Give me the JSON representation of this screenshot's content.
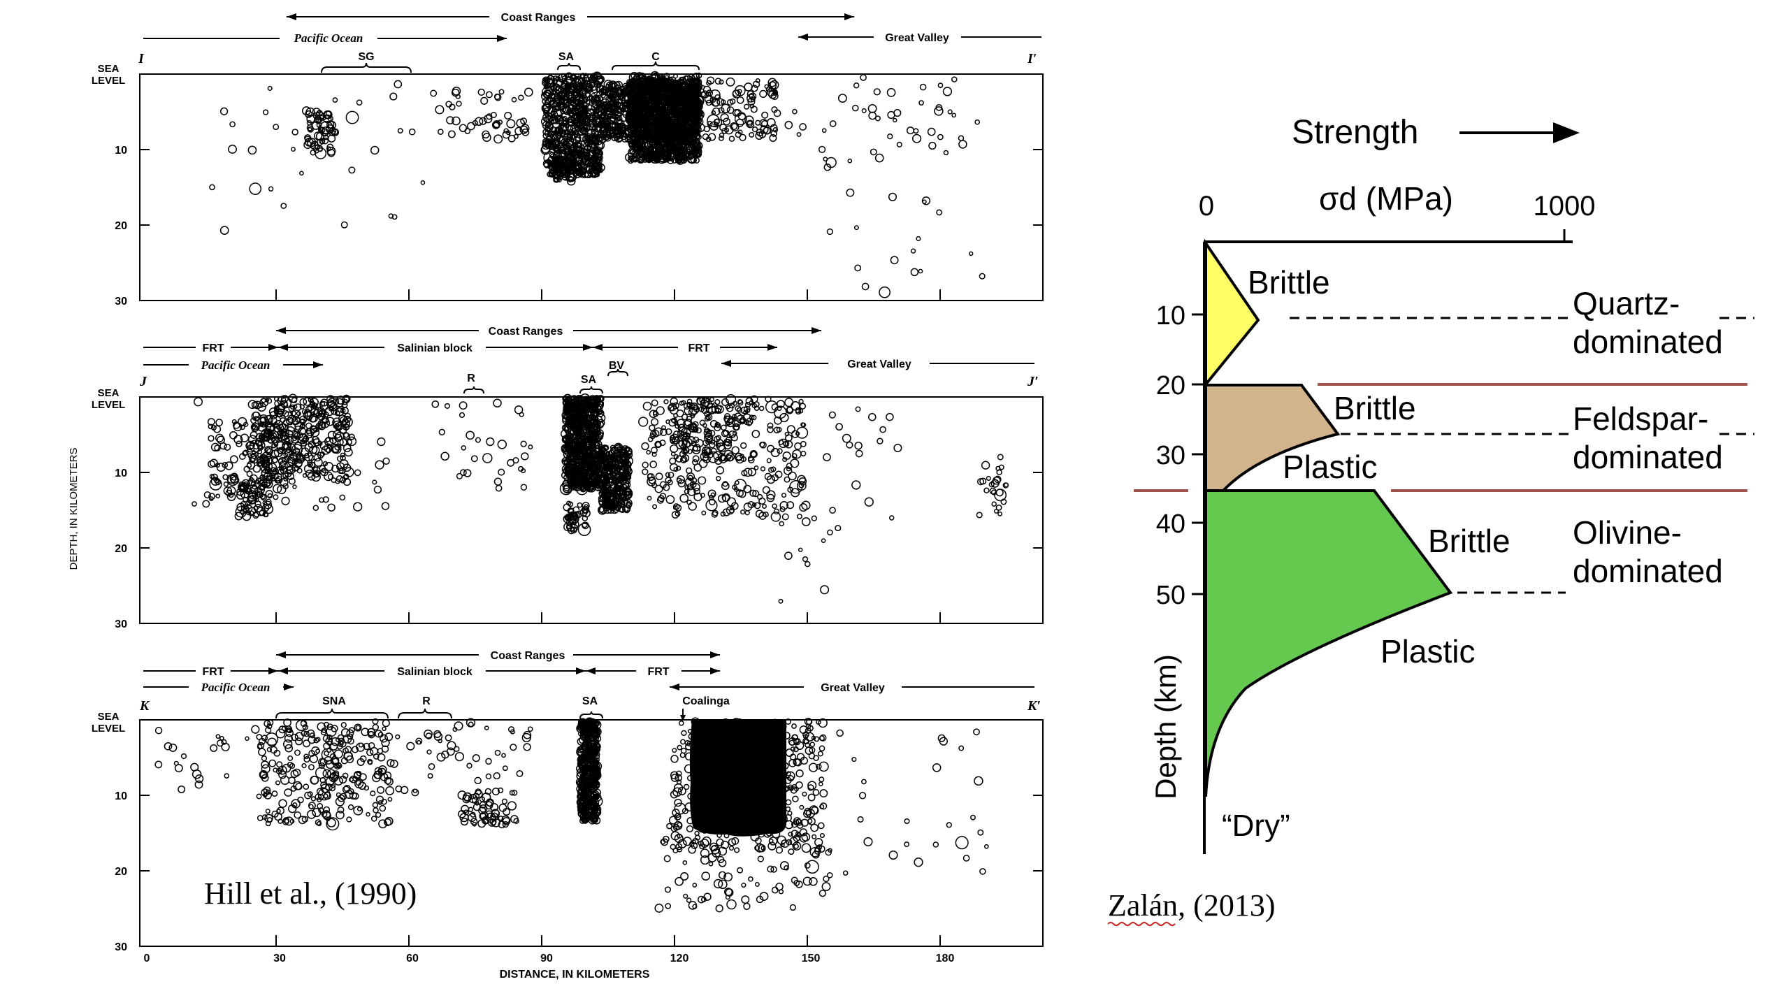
{
  "left_figure": {
    "citation": "Hill et al., (1990)",
    "y_axis_label": "DEPTH, IN KILOMETERS",
    "x_axis_label": "DISTANCE, IN KILOMETERS",
    "sea_level_label": [
      "SEA",
      "LEVEL"
    ],
    "x_ticks": [
      "0",
      "30",
      "60",
      "90",
      "120",
      "150",
      "180"
    ],
    "depth_ticks": [
      "10",
      "20",
      "30"
    ],
    "panels": [
      {
        "left_end": "I",
        "right_end": "I′",
        "provinces": [
          {
            "label": "Coast Ranges",
            "style": "arrow"
          },
          {
            "label": "Pacific Ocean",
            "style": "arrow-italic"
          },
          {
            "label": "Great Valley",
            "style": "arrow"
          }
        ],
        "features": [
          "SG",
          "SA",
          "C"
        ]
      },
      {
        "left_end": "J",
        "right_end": "J′",
        "provinces": [
          {
            "label": "Coast Ranges",
            "style": "arrow"
          },
          {
            "label": "FRT",
            "style": "arrow"
          },
          {
            "label": "Salinian block",
            "style": "arrow"
          },
          {
            "label": "FRT",
            "style": "arrow"
          },
          {
            "label": "Pacific Ocean",
            "style": "arrow-italic"
          },
          {
            "label": "Great Valley",
            "style": "arrow"
          }
        ],
        "features": [
          "R",
          "SA",
          "BV"
        ]
      },
      {
        "left_end": "K",
        "right_end": "K′",
        "provinces": [
          {
            "label": "Coast Ranges",
            "style": "arrow"
          },
          {
            "label": "FRT",
            "style": "arrow"
          },
          {
            "label": "Salinian block",
            "style": "arrow"
          },
          {
            "label": "FRT",
            "style": "arrow"
          },
          {
            "label": "Pacific Ocean",
            "style": "arrow-italic"
          },
          {
            "label": "Great Valley",
            "style": "arrow"
          }
        ],
        "features": [
          "SNA",
          "R",
          "SA",
          "Coalinga"
        ]
      }
    ]
  },
  "right_figure": {
    "citation": "Zalán, (2013)",
    "strength_label": "Strength",
    "stress_axis_label": "σd (MPa)",
    "stress_ticks": [
      "0",
      "1000"
    ],
    "depth_axis_label": "Depth (km)",
    "depth_ticks": [
      "10",
      "20",
      "30",
      "40",
      "50"
    ],
    "layers": [
      {
        "name": "Quartz-dominated",
        "lines": [
          "Quartz-",
          "dominated"
        ],
        "color": "#ffff66",
        "labels": [
          "Brittle"
        ]
      },
      {
        "name": "Feldspar-dominated",
        "lines": [
          "Feldspar-",
          "dominated"
        ],
        "color": "#d2b48c",
        "labels": [
          "Brittle",
          "Plastic"
        ]
      },
      {
        "name": "Olivine-dominated",
        "lines": [
          "Olivine-",
          "dominated"
        ],
        "color": "#66c94f",
        "labels": [
          "Brittle",
          "Plastic"
        ]
      }
    ],
    "condition": "“Dry”",
    "boundary_color": "#a0524d"
  }
}
